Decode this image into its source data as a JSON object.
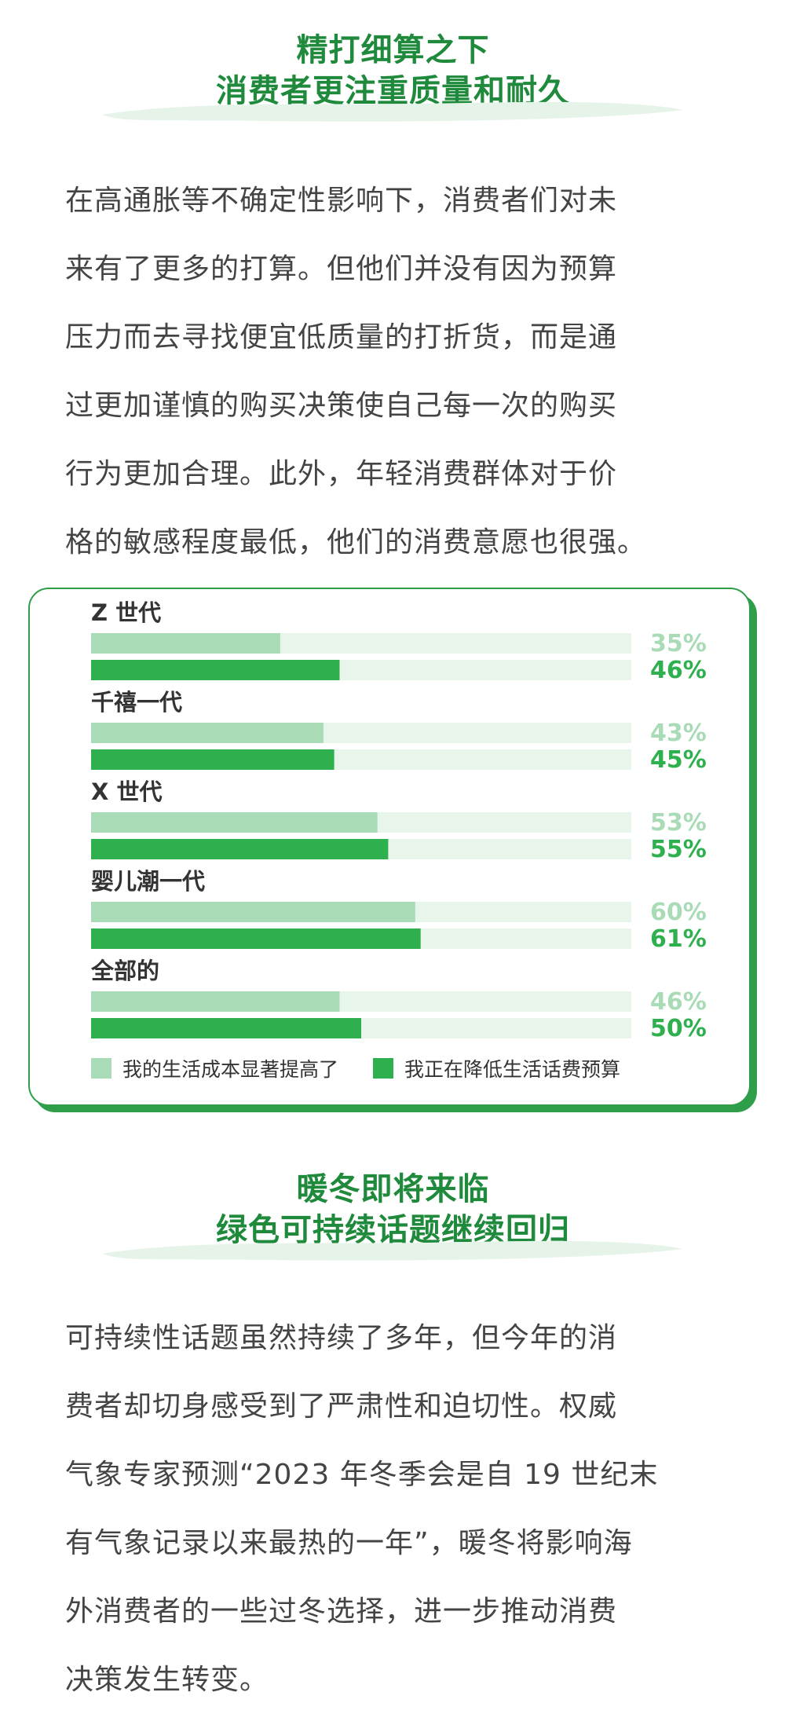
{
  "section1": {
    "title_lines": [
      "精打细算之下",
      "消费者更注重质量和耐久"
    ],
    "paragraph_lines": [
      "在高通胀等不确定性影响下，消费者们对未",
      "来有了更多的打算。但他们并没有因为预算",
      "压力而去寻找便宜低质量的打折货，而是通",
      "过更加谨慎的购买决策使自己每一次的购买",
      "行为更加合理。此外，年轻消费群体对于价",
      "格的敏感程度最低，他们的消费意愿也很强。"
    ]
  },
  "section2": {
    "title_lines": [
      "暖冬即将来临",
      "绿色可持续话题继续回归"
    ],
    "paragraph_lines": [
      "可持续性话题虽然持续了多年，但今年的消",
      "费者却切身感受到了严肃性和迫切性。权威",
      "气象专家预测“2023 年冬季会是自 19 世纪末",
      "有气象记录以来最热的一年”，暖冬将影响海",
      "外消费者的一些过冬选择，进一步推动消费",
      "决策发生转变。"
    ]
  },
  "colors": {
    "title_green": "#1f8a3c",
    "light_bar": "#a8dbb6",
    "dark_bar": "#2fb04f",
    "track": "#e8f5eb",
    "light_label": "#a8dbb6",
    "dark_label": "#2fb04f",
    "card_border": "#2e9e4a"
  },
  "chart_data": {
    "type": "bar",
    "orientation": "horizontal",
    "categories": [
      "Z 世代",
      "千禧一代",
      "X 世代",
      "婴儿潮一代",
      "全部的"
    ],
    "series": [
      {
        "name": "我的生活成本显著提高了",
        "values": [
          35,
          43,
          53,
          60,
          46
        ]
      },
      {
        "name": "我正在降低生活话费预算",
        "values": [
          46,
          45,
          55,
          61,
          50
        ]
      }
    ],
    "value_suffix": "%",
    "xlim": [
      0,
      100
    ],
    "legend_position": "bottom"
  }
}
